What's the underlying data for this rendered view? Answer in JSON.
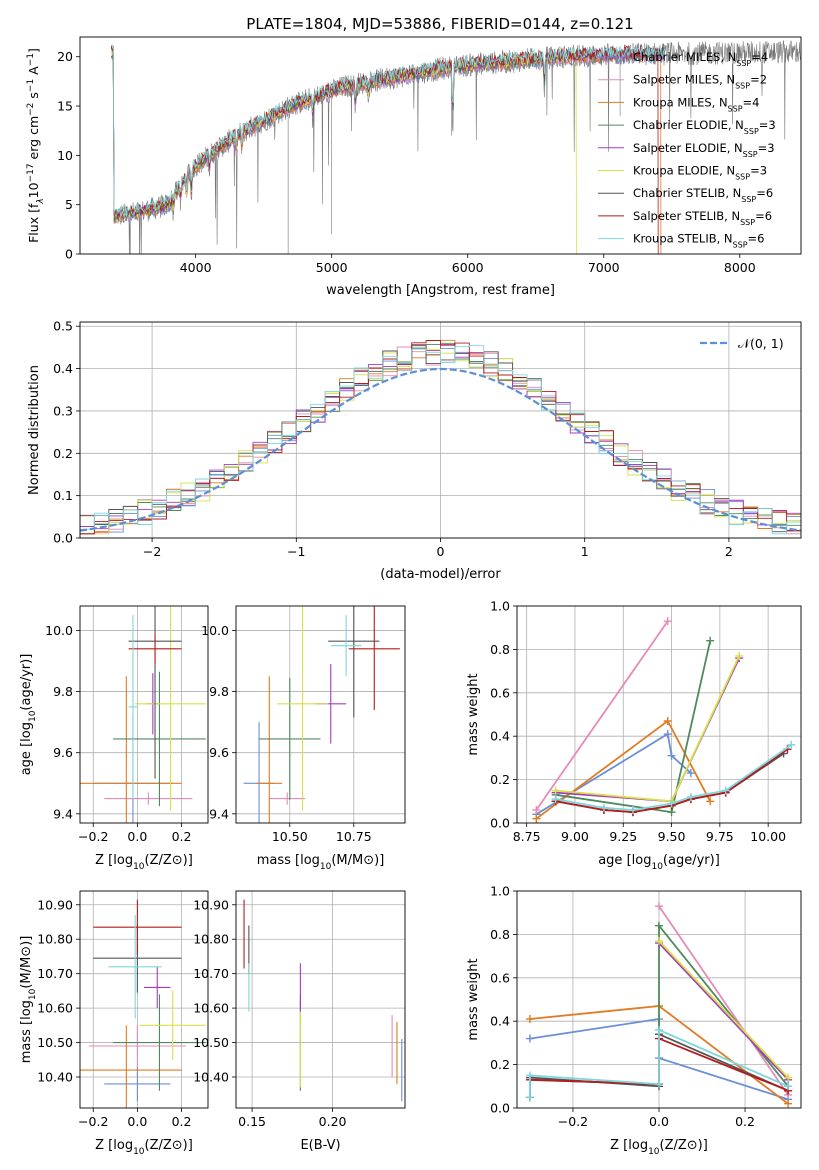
{
  "figure": {
    "title": "PLATE=1804, MJD=53886, FIBERID=0144, z=0.121"
  },
  "colors": {
    "Chabrier MILES": "#6b8fd6",
    "Salpeter MILES": "#e58bb8",
    "Kroupa MILES": "#e07b22",
    "Chabrier ELODIE": "#4f8a5c",
    "Salpeter ELODIE": "#a43cc0",
    "Kroupa ELODIE": "#d8e04a",
    "Chabrier STELIB": "#555555",
    "Salpeter STELIB": "#b51c1c",
    "Kroupa STELIB": "#7fd6dc",
    "normal": "#5b8fd6",
    "spectrum_data": "#777777"
  },
  "chart_data": [
    {
      "id": "spectrum",
      "type": "line",
      "xlabel": "wavelength [Angstrom, rest frame]",
      "ylabel": "Flux [f_λ 10^-17 erg cm^-2 s^-1 A^-1]",
      "ylabel_parts": {
        "a": "Flux [f",
        "b": "λ",
        "c": "10",
        "d": "−17",
        "e": " erg cm",
        "f": "−2",
        "g": " s",
        "h": "−1",
        "i": " A",
        "j": "−1",
        "k": "]"
      },
      "xlim": [
        3150,
        8450
      ],
      "ylim": [
        0,
        22
      ],
      "xticks": [
        4000,
        5000,
        6000,
        7000,
        8000
      ],
      "yticks": [
        0,
        5,
        10,
        15,
        20
      ],
      "legend": [
        {
          "name": "Chabrier MILES",
          "nssp": "4"
        },
        {
          "name": "Salpeter MILES",
          "nssp": "2"
        },
        {
          "name": "Kroupa MILES",
          "nssp": "4"
        },
        {
          "name": "Chabrier ELODIE",
          "nssp": "3"
        },
        {
          "name": "Salpeter ELODIE",
          "nssp": "3"
        },
        {
          "name": "Kroupa ELODIE",
          "nssp": "3"
        },
        {
          "name": "Chabrier STELIB",
          "nssp": "6"
        },
        {
          "name": "Salpeter STELIB",
          "nssp": "6"
        },
        {
          "name": "Kroupa STELIB",
          "nssp": "6"
        }
      ],
      "continuum": {
        "x": [
          3400,
          3600,
          3800,
          3950,
          4100,
          4300,
          4500,
          4700,
          4900,
          5100,
          5300,
          5500,
          5700,
          5900,
          6100,
          6300,
          6500,
          6700,
          6900,
          7100,
          7300,
          7450,
          8450
        ],
        "y": [
          3.8,
          4.3,
          5.0,
          8.3,
          10.0,
          12.0,
          13.5,
          15.0,
          16.0,
          17.0,
          17.5,
          18.0,
          18.5,
          19.0,
          19.3,
          19.5,
          19.8,
          20.0,
          20.1,
          20.2,
          20.3,
          20.3,
          20.5
        ]
      },
      "model_range": [
        3380,
        7450
      ],
      "data_range": [
        3420,
        8450
      ],
      "truncations": [
        {
          "model": "Kroupa ELODIE",
          "at": 6800
        },
        {
          "model": "Salpeter STELIB",
          "at": 7400
        },
        {
          "model": "Kroupa MILES",
          "at": 7420
        }
      ]
    },
    {
      "id": "residuals",
      "type": "line",
      "xlabel": "(data-model)/error",
      "ylabel": "Normed distribution",
      "xlim": [
        -2.5,
        2.5
      ],
      "ylim": [
        0,
        0.51
      ],
      "xticks": [
        -2,
        -1,
        0,
        1,
        2
      ],
      "yticks": [
        0.0,
        0.1,
        0.2,
        0.3,
        0.4,
        0.5
      ],
      "legend_label": "𝒩(0, 1)",
      "bin_width": 0.1
    },
    {
      "id": "age_vs_Z",
      "type": "scatter",
      "xlabel": "Z [log10(Z/Z⊙)]",
      "ylabel": "age [log10(age/yr)]",
      "xlim": [
        -0.26,
        0.32
      ],
      "ylim": [
        9.37,
        10.08
      ],
      "xticks": [
        -0.2,
        0.0,
        0.2
      ],
      "yticks": [
        9.4,
        9.6,
        9.8,
        10.0
      ],
      "points": [
        {
          "model": "Chabrier MILES",
          "x": -0.02,
          "xerr": 0.18,
          "y": 9.5,
          "yerr": 0.22
        },
        {
          "model": "Salpeter MILES",
          "x": 0.05,
          "xerr": 0.2,
          "y": 9.45,
          "yerr": 0.02
        },
        {
          "model": "Kroupa MILES",
          "x": -0.05,
          "xerr": 0.25,
          "y": 9.5,
          "yerr": 0.35
        },
        {
          "model": "Chabrier ELODIE",
          "x": 0.1,
          "xerr": 0.21,
          "y": 9.645,
          "yerr": 0.22
        },
        {
          "model": "Salpeter ELODIE",
          "x": 0.07,
          "xerr": 0.03,
          "y": 9.76,
          "yerr": 0.1
        },
        {
          "model": "Kroupa ELODIE",
          "x": 0.15,
          "xerr": 0.16,
          "y": 9.76,
          "yerr": 0.35
        },
        {
          "model": "Chabrier STELIB",
          "x": 0.08,
          "xerr": 0.12,
          "y": 9.965,
          "yerr": 0.45
        },
        {
          "model": "Salpeter STELIB",
          "x": 0.08,
          "xerr": 0.12,
          "y": 9.94,
          "yerr": 0.05
        },
        {
          "model": "Kroupa STELIB",
          "x": -0.02,
          "xerr": 0.02,
          "y": 9.75,
          "yerr": 0.3
        }
      ]
    },
    {
      "id": "age_vs_mass",
      "type": "scatter",
      "xlabel": "mass [log10(M/M⊙)]",
      "xlim": [
        10.29,
        10.95
      ],
      "ylim": [
        9.37,
        10.08
      ],
      "xticks": [
        10.5,
        10.75
      ],
      "yticks": [
        9.4,
        9.6,
        9.8,
        10.0
      ],
      "points": [
        {
          "model": "Chabrier MILES",
          "x": 10.38,
          "xerr": 0.06,
          "y": 9.5,
          "yerr": 0.2
        },
        {
          "model": "Salpeter MILES",
          "x": 10.49,
          "xerr": 0.07,
          "y": 9.45,
          "yerr": 0.02
        },
        {
          "model": "Kroupa MILES",
          "x": 10.42,
          "xerr": 0.05,
          "y": 9.5,
          "yerr": 0.35
        },
        {
          "model": "Chabrier ELODIE",
          "x": 10.5,
          "xerr": 0.12,
          "y": 9.645,
          "yerr": 0.2
        },
        {
          "model": "Salpeter ELODIE",
          "x": 10.66,
          "xerr": 0.06,
          "y": 9.76,
          "yerr": 0.13
        },
        {
          "model": "Kroupa ELODIE",
          "x": 10.55,
          "xerr": 0.1,
          "y": 9.76,
          "yerr": 0.35
        },
        {
          "model": "Chabrier STELIB",
          "x": 10.75,
          "xerr": 0.1,
          "y": 9.965,
          "yerr": 0.25
        },
        {
          "model": "Salpeter STELIB",
          "x": 10.83,
          "xerr": 0.1,
          "y": 9.94,
          "yerr": 0.2
        },
        {
          "model": "Kroupa STELIB",
          "x": 10.72,
          "xerr": 0.06,
          "y": 9.95,
          "yerr": 0.1
        }
      ]
    },
    {
      "id": "weight_vs_age",
      "type": "line",
      "xlabel": "age [log10(age/yr)]",
      "ylabel": "mass weight",
      "xlim": [
        8.7,
        10.17
      ],
      "ylim": [
        0,
        1.0
      ],
      "xticks": [
        8.75,
        9.0,
        9.25,
        9.5,
        9.75,
        10.0
      ],
      "yticks": [
        0.0,
        0.2,
        0.4,
        0.6,
        0.8,
        1.0
      ],
      "series": [
        {
          "model": "Chabrier MILES",
          "x": [
            8.8,
            9.48,
            9.5,
            9.6
          ],
          "y": [
            0.04,
            0.41,
            0.31,
            0.23
          ]
        },
        {
          "model": "Salpeter MILES",
          "x": [
            8.8,
            9.48
          ],
          "y": [
            0.06,
            0.93
          ]
        },
        {
          "model": "Kroupa MILES",
          "x": [
            8.8,
            9.48,
            9.7
          ],
          "y": [
            0.02,
            0.47,
            0.1
          ]
        },
        {
          "model": "Chabrier ELODIE",
          "x": [
            8.9,
            9.5,
            9.7
          ],
          "y": [
            0.13,
            0.05,
            0.84
          ]
        },
        {
          "model": "Salpeter ELODIE",
          "x": [
            8.9,
            9.5,
            9.85
          ],
          "y": [
            0.14,
            0.1,
            0.76
          ]
        },
        {
          "model": "Kroupa ELODIE",
          "x": [
            8.9,
            9.5,
            9.85
          ],
          "y": [
            0.15,
            0.1,
            0.77
          ]
        },
        {
          "model": "Chabrier STELIB",
          "x": [
            8.9,
            9.15,
            9.3,
            9.5,
            9.6,
            9.78,
            10.08
          ],
          "y": [
            0.1,
            0.06,
            0.05,
            0.08,
            0.11,
            0.14,
            0.32
          ]
        },
        {
          "model": "Salpeter STELIB",
          "x": [
            8.9,
            9.15,
            9.3,
            9.5,
            9.6,
            9.78,
            10.1
          ],
          "y": [
            0.1,
            0.06,
            0.05,
            0.08,
            0.11,
            0.14,
            0.34
          ]
        },
        {
          "model": "Kroupa STELIB",
          "x": [
            8.9,
            9.15,
            9.3,
            9.5,
            9.6,
            9.78,
            10.12
          ],
          "y": [
            0.11,
            0.07,
            0.06,
            0.09,
            0.12,
            0.15,
            0.36
          ]
        }
      ]
    },
    {
      "id": "mass_vs_Z",
      "type": "scatter",
      "xlabel": "Z [log10(Z/Z⊙)]",
      "ylabel": "mass [log10(M/M⊙)]",
      "xlim": [
        -0.26,
        0.32
      ],
      "ylim": [
        10.31,
        10.94
      ],
      "xticks": [
        -0.2,
        0.0,
        0.2
      ],
      "yticks": [
        10.4,
        10.5,
        10.6,
        10.7,
        10.8,
        10.9
      ],
      "points": [
        {
          "model": "Chabrier MILES",
          "x": 0.0,
          "xerr": 0.15,
          "y": 10.38,
          "yerr": 0.05
        },
        {
          "model": "Salpeter MILES",
          "x": 0.0,
          "xerr": 0.22,
          "y": 10.49,
          "yerr": 0.06
        },
        {
          "model": "Kroupa MILES",
          "x": -0.05,
          "xerr": 0.25,
          "y": 10.42,
          "yerr": 0.13
        },
        {
          "model": "Chabrier ELODIE",
          "x": 0.1,
          "xerr": 0.21,
          "y": 10.5,
          "yerr": 0.14
        },
        {
          "model": "Salpeter ELODIE",
          "x": 0.09,
          "xerr": 0.06,
          "y": 10.66,
          "yerr": 0.06
        },
        {
          "model": "Kroupa ELODIE",
          "x": 0.16,
          "xerr": 0.15,
          "y": 10.55,
          "yerr": 0.1
        },
        {
          "model": "Chabrier STELIB",
          "x": 0.0,
          "xerr": 0.2,
          "y": 10.745,
          "yerr": 0.1
        },
        {
          "model": "Salpeter STELIB",
          "x": 0.0,
          "xerr": 0.2,
          "y": 10.835,
          "yerr": 0.08
        },
        {
          "model": "Kroupa STELIB",
          "x": -0.01,
          "xerr": 0.12,
          "y": 10.72,
          "yerr": 0.15
        }
      ]
    },
    {
      "id": "mass_vs_EBV",
      "type": "scatter",
      "xlabel": "E(B-V)",
      "xlim": [
        0.14,
        0.245
      ],
      "ylim": [
        10.31,
        10.94
      ],
      "xticks": [
        0.15,
        0.2
      ],
      "yticks": [
        10.4,
        10.5,
        10.6,
        10.7,
        10.8,
        10.9
      ],
      "points": [
        {
          "model": "Chabrier MILES",
          "x": 0.243,
          "y": 10.42,
          "yerr": 0.09
        },
        {
          "model": "Salpeter MILES",
          "x": 0.237,
          "y": 10.49,
          "yerr": 0.09
        },
        {
          "model": "Kroupa MILES",
          "x": 0.24,
          "y": 10.47,
          "yerr": 0.09
        },
        {
          "model": "Chabrier ELODIE",
          "x": 0.18,
          "y": 10.5,
          "yerr": 0.14
        },
        {
          "model": "Salpeter ELODIE",
          "x": 0.18,
          "y": 10.66,
          "yerr": 0.07
        },
        {
          "model": "Kroupa ELODIE",
          "x": 0.18,
          "y": 10.48,
          "yerr": 0.11
        },
        {
          "model": "Chabrier STELIB",
          "x": 0.148,
          "y": 10.77,
          "yerr": 0.07
        },
        {
          "model": "Salpeter STELIB",
          "x": 0.145,
          "y": 10.815,
          "yerr": 0.1
        },
        {
          "model": "Kroupa STELIB",
          "x": 0.148,
          "y": 10.66,
          "yerr": 0.07
        }
      ]
    },
    {
      "id": "weight_vs_Z",
      "type": "line",
      "xlabel": "Z [log10(Z/Z⊙)]",
      "ylabel": "mass weight",
      "xlim": [
        -0.33,
        0.33
      ],
      "ylim": [
        0,
        1.0
      ],
      "xticks": [
        -0.2,
        0.0,
        0.2
      ],
      "yticks": [
        0.0,
        0.2,
        0.4,
        0.6,
        0.8,
        1.0
      ],
      "series": [
        {
          "model": "Chabrier MILES",
          "x": [
            -0.3,
            0.0,
            0.0,
            0.3
          ],
          "y": [
            0.32,
            0.41,
            0.23,
            0.04
          ]
        },
        {
          "model": "Salpeter MILES",
          "x": [
            0.0,
            0.3
          ],
          "y": [
            0.93,
            0.06
          ]
        },
        {
          "model": "Kroupa MILES",
          "x": [
            -0.3,
            0.0,
            0.3
          ],
          "y": [
            0.41,
            0.47,
            0.02
          ]
        },
        {
          "model": "Chabrier ELODIE",
          "x": [
            -0.3,
            -0.3,
            0.0,
            0.0,
            0.3
          ],
          "y": [
            0.05,
            0.13,
            0.11,
            0.84,
            0.1
          ]
        },
        {
          "model": "Salpeter ELODIE",
          "x": [
            0.0,
            0.3
          ],
          "y": [
            0.76,
            0.13
          ]
        },
        {
          "model": "Kroupa ELODIE",
          "x": [
            0.0,
            0.3
          ],
          "y": [
            0.77,
            0.14
          ]
        },
        {
          "model": "Chabrier STELIB",
          "x": [
            -0.3,
            -0.3,
            0.0,
            0.0,
            0.3
          ],
          "y": [
            0.05,
            0.14,
            0.1,
            0.34,
            0.08
          ]
        },
        {
          "model": "Salpeter STELIB",
          "x": [
            -0.3,
            0.0,
            0.0,
            0.3
          ],
          "y": [
            0.13,
            0.11,
            0.32,
            0.08
          ]
        },
        {
          "model": "Kroupa STELIB",
          "x": [
            -0.3,
            -0.3,
            0.0,
            0.0,
            0.3
          ],
          "y": [
            0.05,
            0.15,
            0.11,
            0.36,
            0.1
          ]
        }
      ]
    }
  ]
}
